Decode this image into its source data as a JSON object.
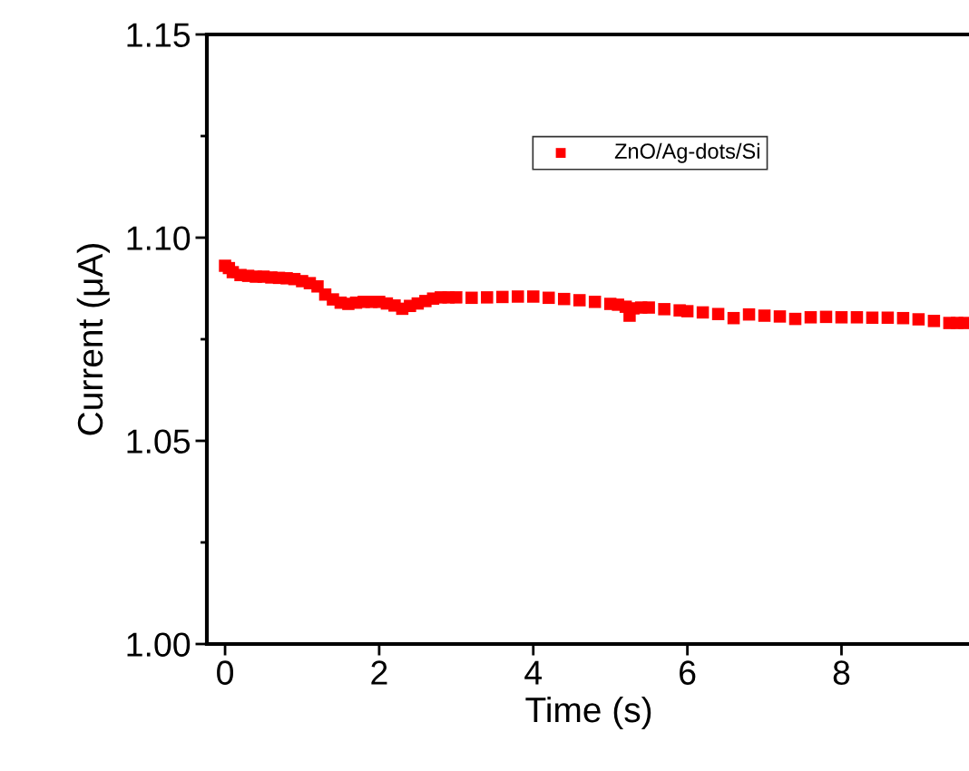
{
  "chart_data": {
    "type": "scatter",
    "xlabel": "Time (s)",
    "ylabel": "Current (μA)",
    "xlim": [
      -0.236,
      9.68
    ],
    "ylim": [
      1.0,
      1.15
    ],
    "xticks": [
      0,
      2,
      4,
      6,
      8
    ],
    "yticks": [
      {
        "value": 1.0,
        "label": "1.00"
      },
      {
        "value": 1.05,
        "label": "1.05"
      },
      {
        "value": 1.1,
        "label": "1.10"
      },
      {
        "value": 1.15,
        "label": "1.15"
      }
    ],
    "marker": "square",
    "grid": false,
    "legend": "top",
    "series": [
      {
        "name": "ZnO/Ag-dots/Si",
        "color": "#ff0000",
        "x": [
          0,
          0.05,
          0.1,
          0.2,
          0.3,
          0.4,
          0.5,
          0.6,
          0.7,
          0.8,
          0.9,
          1.0,
          1.1,
          1.2,
          1.3,
          1.4,
          1.5,
          1.6,
          1.7,
          1.8,
          1.9,
          2.0,
          2.1,
          2.2,
          2.3,
          2.4,
          2.5,
          2.6,
          2.7,
          2.8,
          2.9,
          3.0,
          3.2,
          3.4,
          3.6,
          3.8,
          4.0,
          4.2,
          4.4,
          4.6,
          4.8,
          5.0,
          5.1,
          5.2,
          5.25,
          5.3,
          5.4,
          5.5,
          5.7,
          5.9,
          6.0,
          6.2,
          6.4,
          6.6,
          6.8,
          7.0,
          7.2,
          7.4,
          7.6,
          7.8,
          8.0,
          8.2,
          8.4,
          8.6,
          8.8,
          9.0,
          9.2,
          9.4,
          9.5,
          9.6
        ],
        "values": [
          1.0931,
          1.0925,
          1.0915,
          1.0908,
          1.0906,
          1.0904,
          1.0904,
          1.0902,
          1.0901,
          1.09,
          1.0898,
          1.0893,
          1.0888,
          1.088,
          1.086,
          1.0848,
          1.084,
          1.0837,
          1.084,
          1.0842,
          1.0842,
          1.0842,
          1.0838,
          1.0833,
          1.0825,
          1.0832,
          1.0838,
          1.0844,
          1.085,
          1.0853,
          1.0853,
          1.0853,
          1.0852,
          1.0853,
          1.0854,
          1.0855,
          1.0855,
          1.0852,
          1.0849,
          1.0846,
          1.0842,
          1.0837,
          1.0835,
          1.083,
          1.0808,
          1.0826,
          1.0828,
          1.0828,
          1.0824,
          1.0821,
          1.0819,
          1.0816,
          1.0812,
          1.0802,
          1.0811,
          1.0808,
          1.0806,
          1.08,
          1.0804,
          1.0805,
          1.0804,
          1.0804,
          1.0803,
          1.0803,
          1.0802,
          1.0799,
          1.0795,
          1.079,
          1.079,
          1.079
        ]
      }
    ]
  }
}
